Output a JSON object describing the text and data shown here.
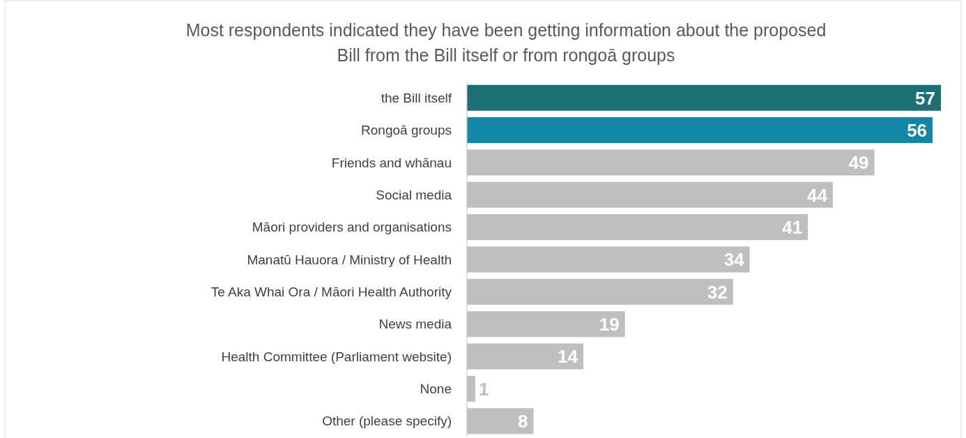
{
  "chart_data": {
    "type": "bar",
    "orientation": "horizontal",
    "title": "Most respondents indicated they have been getting information about the proposed Bill from the Bill itself or from rongoā groups",
    "categories": [
      "the Bill itself",
      "Rongoā groups",
      "Friends and whānau",
      "Social media",
      "Māori providers and organisations",
      "Manatū Hauora / Ministry of Health",
      "Te Aka Whai Ora / Māori Health Authority",
      "News media",
      "Health Committee (Parliament website)",
      "None",
      "Other (please specify)"
    ],
    "values": [
      57,
      56,
      49,
      44,
      41,
      34,
      32,
      19,
      14,
      1,
      8
    ],
    "colors": [
      "#1b7076",
      "#1287a8",
      "#bfbfbf",
      "#bfbfbf",
      "#bfbfbf",
      "#bfbfbf",
      "#bfbfbf",
      "#bfbfbf",
      "#bfbfbf",
      "#bfbfbf",
      "#bfbfbf"
    ],
    "data_labels": true
  }
}
